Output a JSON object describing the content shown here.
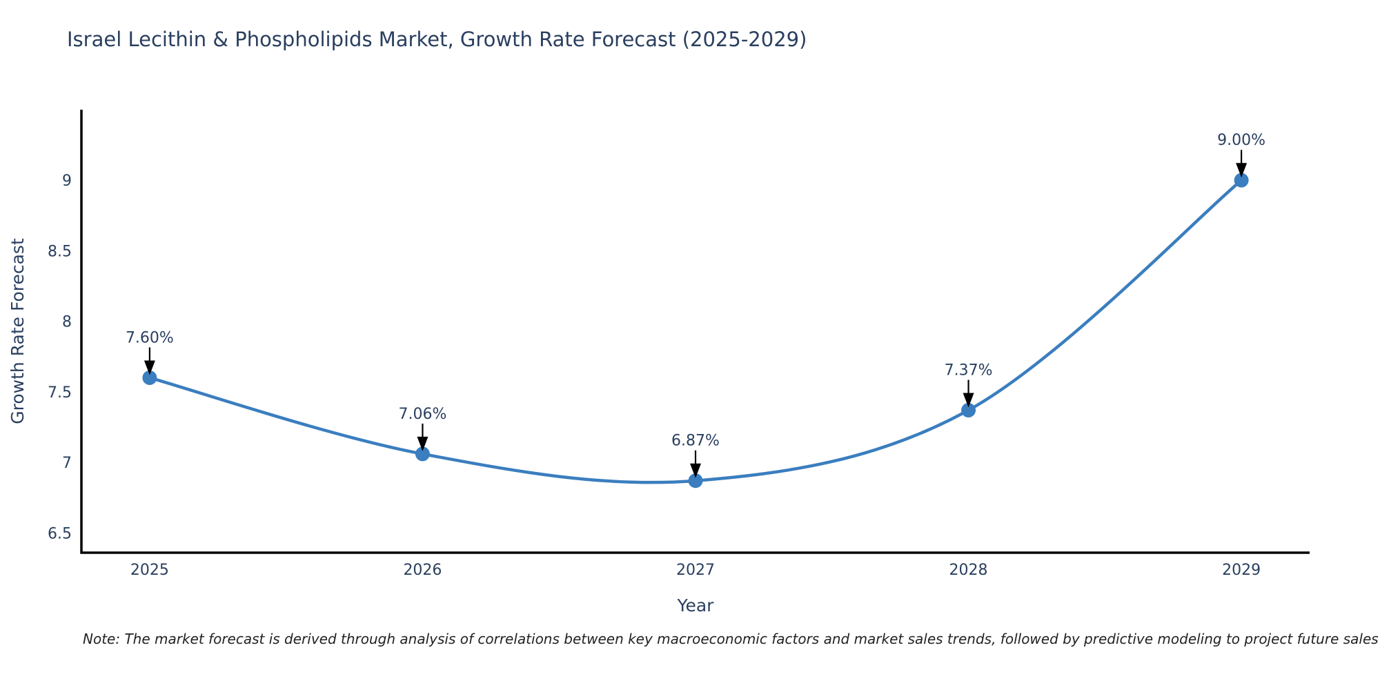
{
  "title": "Israel Lecithin & Phospholipids Market, Growth Rate Forecast (2025-2029)",
  "note": "Note: The market forecast is derived through analysis of correlations between key macroeconomic factors and market sales trends, followed by predictive modeling to project future sales",
  "colors": {
    "title_text": "#2a3f5f",
    "tick_text": "#2a3f5f",
    "annotation_text": "#2a3f5f",
    "axis_line": "#000000",
    "arrow": "#000000",
    "series": "#3a7ebf",
    "note_text": "#222222",
    "background": "#ffffff"
  },
  "chart_data": {
    "type": "line",
    "line_shape": "spline",
    "title": "Israel Lecithin & Phospholipids Market, Growth Rate Forecast (2025-2029)",
    "xlabel": "Year",
    "ylabel": "Growth Rate Forecast",
    "x": [
      2025,
      2026,
      2027,
      2028,
      2029
    ],
    "values": [
      7.6,
      7.06,
      6.87,
      7.37,
      9.0
    ],
    "point_labels": [
      "7.60%",
      "7.06%",
      "6.87%",
      "7.37%",
      "9.00%"
    ],
    "x_tick_labels": [
      "2025",
      "2026",
      "2027",
      "2028",
      "2029"
    ],
    "y_tick_values": [
      6.5,
      7,
      7.5,
      8,
      8.5,
      9
    ],
    "y_tick_labels": [
      "6.5",
      "7",
      "7.5",
      "8",
      "8.5",
      "9"
    ],
    "xlim": [
      2024.75,
      2029.25
    ],
    "ylim": [
      6.36,
      9.5
    ],
    "grid": false,
    "legend": false
  }
}
